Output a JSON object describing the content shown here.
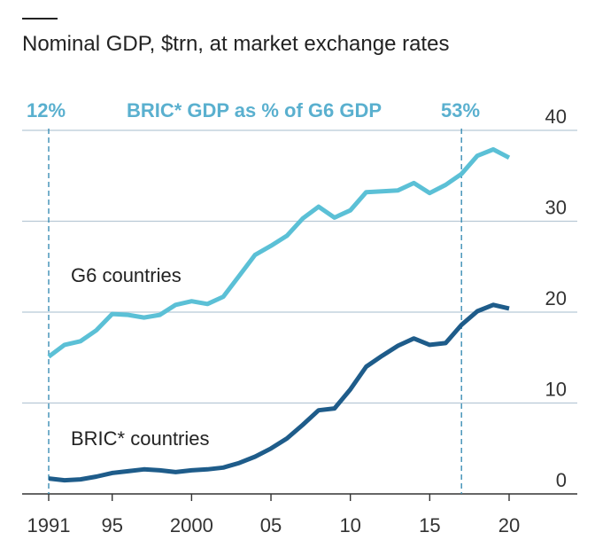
{
  "chart_data": {
    "type": "line",
    "title": "",
    "subtitle": "Nominal GDP, $trn, at market exchange rates",
    "xlabel": "",
    "ylabel": "",
    "ylim": [
      0,
      40
    ],
    "xlim": [
      1991,
      2020
    ],
    "y_axis_position": "right",
    "grid": "horizontal",
    "y_ticks": [
      0,
      10,
      20,
      30,
      40
    ],
    "x_ticks": [
      {
        "x": 1991,
        "label": "1991"
      },
      {
        "x": 1995,
        "label": "95"
      },
      {
        "x": 2000,
        "label": "2000"
      },
      {
        "x": 2005,
        "label": "05"
      },
      {
        "x": 2010,
        "label": "10"
      },
      {
        "x": 2015,
        "label": "15"
      },
      {
        "x": 2020,
        "label": "20"
      }
    ],
    "annotations": {
      "header": "BRIC* GDP as % of G6 GDP",
      "left_value": "12%",
      "left_year": 1991,
      "right_value": "53%",
      "right_year": 2017
    },
    "series": [
      {
        "name": "G6 countries",
        "color": "#5bc0d6",
        "x": [
          1991,
          1992,
          1993,
          1994,
          1995,
          1996,
          1997,
          1998,
          1999,
          2000,
          2001,
          2002,
          2003,
          2004,
          2005,
          2006,
          2007,
          2008,
          2009,
          2010,
          2011,
          2012,
          2013,
          2014,
          2015,
          2016,
          2017,
          2018,
          2019,
          2020
        ],
        "values": [
          15.1,
          16.4,
          16.8,
          18.0,
          19.8,
          19.7,
          19.4,
          19.7,
          20.8,
          21.2,
          20.9,
          21.7,
          24.0,
          26.3,
          27.3,
          28.4,
          30.3,
          31.6,
          30.4,
          31.2,
          33.2,
          33.3,
          33.4,
          34.2,
          33.1,
          34.0,
          35.2,
          37.2,
          37.9,
          37.0
        ],
        "label_position": "above"
      },
      {
        "name": "BRIC* countries",
        "color": "#1e5c8a",
        "x": [
          1991,
          1992,
          1993,
          1994,
          1995,
          1996,
          1997,
          1998,
          1999,
          2000,
          2001,
          2002,
          2003,
          2004,
          2005,
          2006,
          2007,
          2008,
          2009,
          2010,
          2011,
          2012,
          2013,
          2014,
          2015,
          2016,
          2017,
          2018,
          2019,
          2020
        ],
        "values": [
          1.7,
          1.5,
          1.6,
          1.9,
          2.3,
          2.5,
          2.7,
          2.6,
          2.4,
          2.6,
          2.7,
          2.9,
          3.4,
          4.1,
          5.0,
          6.1,
          7.6,
          9.2,
          9.4,
          11.5,
          14.0,
          15.2,
          16.3,
          17.1,
          16.4,
          16.6,
          18.6,
          20.1,
          20.8,
          20.4
        ],
        "label_position": "above"
      }
    ]
  }
}
